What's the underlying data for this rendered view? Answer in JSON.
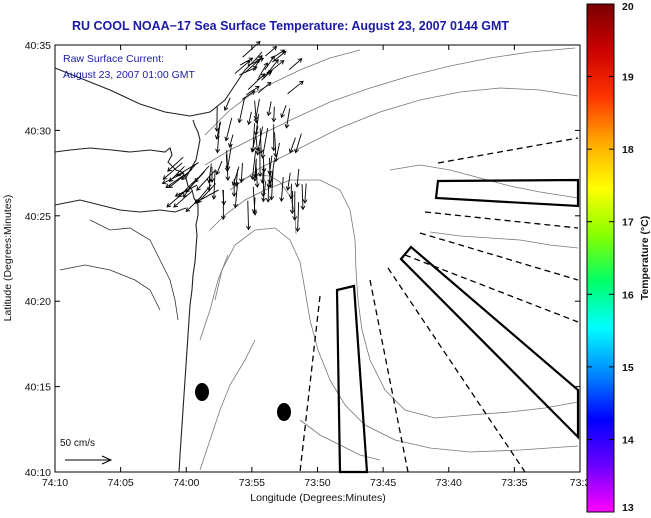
{
  "title": "RU COOL  NOAA−17  Sea Surface Temperature:  August 23, 2007 0144 GMT",
  "annotation": {
    "line1": "Raw Surface Current:",
    "line2": "August 23, 2007 01:00 GMT"
  },
  "axes": {
    "xlabel": "Longitude (Degrees:Minutes)",
    "ylabel": "Latitude (Degrees:Minutes)",
    "xticks": [
      "74:10",
      "74:05",
      "74:00",
      "73:55",
      "73:50",
      "73:45",
      "73:40",
      "73:35",
      "73:3"
    ],
    "yticks": [
      "40:35",
      "40:30",
      "40:25",
      "40:20",
      "40:15",
      "40:10"
    ]
  },
  "colorbar": {
    "label": "Temperature (°C)",
    "ticks": [
      "20",
      "19",
      "18",
      "17",
      "16",
      "15",
      "14",
      "13"
    ],
    "min": 13,
    "max": 20,
    "colors": [
      "#ff00ff",
      "#6a00ff",
      "#0000ff",
      "#0088ff",
      "#00ffff",
      "#00ff66",
      "#88ff00",
      "#ffff00",
      "#ffaa00",
      "#ff3300",
      "#cc0000",
      "#7a0000"
    ]
  },
  "scale": {
    "label": "50 cm/s"
  },
  "map_features": {
    "coastline": "New Jersey shore",
    "current_vectors": "surface current arrows near Sandy Hook",
    "markers": [
      "buoy-1",
      "buoy-2"
    ],
    "boxes": [
      "transect-box-north",
      "transect-box-northeast",
      "transect-box-south"
    ]
  }
}
